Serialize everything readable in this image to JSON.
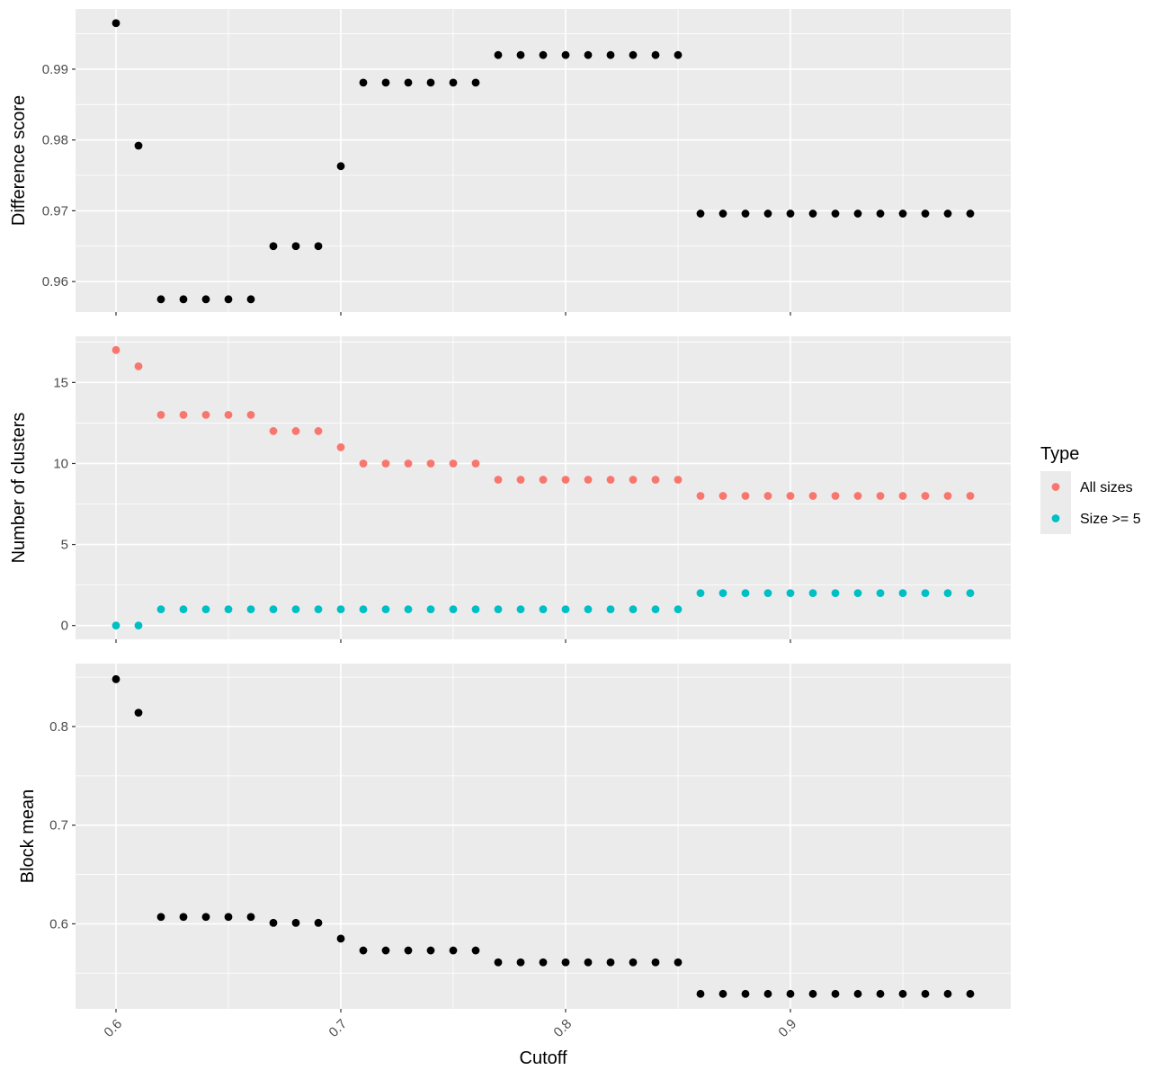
{
  "chart_data": [
    {
      "type": "scatter",
      "xlabel": "",
      "ylabel": "Difference score",
      "xlim": [
        0.582,
        0.998
      ],
      "ylim": [
        0.9557,
        0.9985
      ],
      "xticks": [
        0.6,
        0.7,
        0.8,
        0.9
      ],
      "yticks": [
        0.96,
        0.97,
        0.98,
        0.99
      ],
      "ytick_labels": [
        "0.96",
        "0.97",
        "0.98",
        "0.99"
      ],
      "grid": true,
      "series": [
        {
          "color": "#000000",
          "x": [
            0.6,
            0.61,
            0.62,
            0.63,
            0.64,
            0.65,
            0.66,
            0.67,
            0.68,
            0.69,
            0.7,
            0.71,
            0.72,
            0.73,
            0.74,
            0.75,
            0.76,
            0.77,
            0.78,
            0.79,
            0.8,
            0.81,
            0.82,
            0.83,
            0.84,
            0.85,
            0.86,
            0.87,
            0.88,
            0.89,
            0.9,
            0.91,
            0.92,
            0.93,
            0.94,
            0.95,
            0.96,
            0.97,
            0.98
          ],
          "y": [
            0.9965,
            0.9792,
            0.9575,
            0.9575,
            0.9575,
            0.9575,
            0.9575,
            0.965,
            0.965,
            0.965,
            0.9763,
            0.9881,
            0.9881,
            0.9881,
            0.9881,
            0.9881,
            0.9881,
            0.992,
            0.992,
            0.992,
            0.992,
            0.992,
            0.992,
            0.992,
            0.992,
            0.992,
            0.9696,
            0.9696,
            0.9696,
            0.9696,
            0.9696,
            0.9696,
            0.9696,
            0.9696,
            0.9696,
            0.9696,
            0.9696,
            0.9696,
            0.9696
          ]
        }
      ]
    },
    {
      "type": "scatter",
      "xlabel": "",
      "ylabel": "Number of clusters",
      "xlim": [
        0.582,
        0.998
      ],
      "ylim": [
        -0.85,
        17.85
      ],
      "xticks": [
        0.6,
        0.7,
        0.8,
        0.9
      ],
      "yticks": [
        0,
        5,
        10,
        15
      ],
      "ytick_labels": [
        "0",
        "5",
        "10",
        "15"
      ],
      "grid": true,
      "legend": {
        "title": "Type",
        "position": "right",
        "entries": [
          "All sizes",
          "Size >= 5"
        ]
      },
      "series": [
        {
          "name": "All sizes",
          "color": "#F8766D",
          "x": [
            0.6,
            0.61,
            0.62,
            0.63,
            0.64,
            0.65,
            0.66,
            0.67,
            0.68,
            0.69,
            0.7,
            0.71,
            0.72,
            0.73,
            0.74,
            0.75,
            0.76,
            0.77,
            0.78,
            0.79,
            0.8,
            0.81,
            0.82,
            0.83,
            0.84,
            0.85,
            0.86,
            0.87,
            0.88,
            0.89,
            0.9,
            0.91,
            0.92,
            0.93,
            0.94,
            0.95,
            0.96,
            0.97,
            0.98
          ],
          "y": [
            17,
            16,
            13,
            13,
            13,
            13,
            13,
            12,
            12,
            12,
            11,
            10,
            10,
            10,
            10,
            10,
            10,
            9,
            9,
            9,
            9,
            9,
            9,
            9,
            9,
            9,
            8,
            8,
            8,
            8,
            8,
            8,
            8,
            8,
            8,
            8,
            8,
            8,
            8
          ]
        },
        {
          "name": "Size >= 5",
          "color": "#00BFC4",
          "x": [
            0.6,
            0.61,
            0.62,
            0.63,
            0.64,
            0.65,
            0.66,
            0.67,
            0.68,
            0.69,
            0.7,
            0.71,
            0.72,
            0.73,
            0.74,
            0.75,
            0.76,
            0.77,
            0.78,
            0.79,
            0.8,
            0.81,
            0.82,
            0.83,
            0.84,
            0.85,
            0.86,
            0.87,
            0.88,
            0.89,
            0.9,
            0.91,
            0.92,
            0.93,
            0.94,
            0.95,
            0.96,
            0.97,
            0.98
          ],
          "y": [
            0,
            0,
            1,
            1,
            1,
            1,
            1,
            1,
            1,
            1,
            1,
            1,
            1,
            1,
            1,
            1,
            1,
            1,
            1,
            1,
            1,
            1,
            1,
            1,
            1,
            1,
            2,
            2,
            2,
            2,
            2,
            2,
            2,
            2,
            2,
            2,
            2,
            2,
            2
          ]
        }
      ]
    },
    {
      "type": "scatter",
      "xlabel": "Cutoff",
      "ylabel": "Block mean",
      "xlim": [
        0.582,
        0.998
      ],
      "ylim": [
        0.5138,
        0.8638
      ],
      "xticks": [
        0.6,
        0.7,
        0.8,
        0.9
      ],
      "xtick_labels": [
        "0.6",
        "0.7",
        "0.8",
        "0.9"
      ],
      "yticks": [
        0.6,
        0.7,
        0.8
      ],
      "ytick_labels": [
        "0.6",
        "0.7",
        "0.8"
      ],
      "grid": true,
      "series": [
        {
          "color": "#000000",
          "x": [
            0.6,
            0.61,
            0.62,
            0.63,
            0.64,
            0.65,
            0.66,
            0.67,
            0.68,
            0.69,
            0.7,
            0.71,
            0.72,
            0.73,
            0.74,
            0.75,
            0.76,
            0.77,
            0.78,
            0.79,
            0.8,
            0.81,
            0.82,
            0.83,
            0.84,
            0.85,
            0.86,
            0.87,
            0.88,
            0.89,
            0.9,
            0.91,
            0.92,
            0.93,
            0.94,
            0.95,
            0.96,
            0.97,
            0.98
          ],
          "y": [
            0.848,
            0.814,
            0.607,
            0.607,
            0.607,
            0.607,
            0.607,
            0.601,
            0.601,
            0.601,
            0.585,
            0.573,
            0.573,
            0.573,
            0.573,
            0.573,
            0.573,
            0.561,
            0.561,
            0.561,
            0.561,
            0.561,
            0.561,
            0.561,
            0.561,
            0.561,
            0.529,
            0.529,
            0.529,
            0.529,
            0.529,
            0.529,
            0.529,
            0.529,
            0.529,
            0.529,
            0.529,
            0.529,
            0.529
          ]
        }
      ]
    }
  ]
}
